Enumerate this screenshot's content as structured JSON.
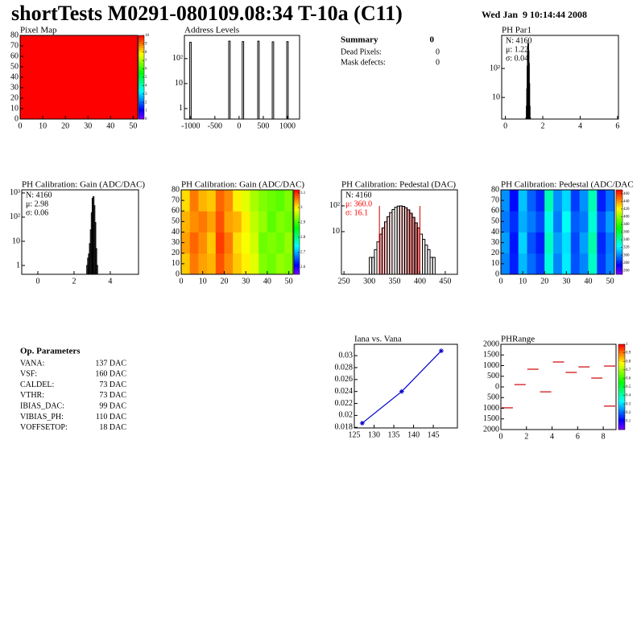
{
  "header": {
    "title": "shortTests M0291-080109.08:34 T-10a (C11)",
    "date": "Wed Jan  9 10:14:44 2008"
  },
  "summary": {
    "title": "Summary",
    "value": 0,
    "rows": [
      [
        "Dead Pixels:",
        0
      ],
      [
        "Mask defects:",
        0
      ]
    ]
  },
  "parameters": {
    "title": "Op. Parameters",
    "rows": [
      [
        "VANA:",
        "137 DAC"
      ],
      [
        "VSF:",
        "160 DAC"
      ],
      [
        "CALDEL:",
        "73 DAC"
      ],
      [
        "VTHR:",
        "73 DAC"
      ],
      [
        "IBIAS_DAC:",
        "99 DAC"
      ],
      [
        "VIBIAS_PH:",
        "110 DAC"
      ],
      [
        "VOFFSETOP:",
        "18 DAC"
      ]
    ]
  },
  "chart_data": [
    {
      "type": "heatmap",
      "title": "Pixel Map",
      "xlim": [
        0,
        52
      ],
      "ylim": [
        0,
        80
      ],
      "xticks": [
        0,
        10,
        20,
        30,
        40,
        50
      ],
      "yticks": [
        0,
        10,
        20,
        30,
        40,
        50,
        60,
        70,
        80
      ],
      "zlim": [
        0,
        10
      ],
      "zticks": [
        0,
        1,
        2,
        3,
        4,
        5,
        6,
        7,
        8,
        9,
        10
      ],
      "z": [
        [
          10
        ]
      ]
    },
    {
      "type": "histogram",
      "title": "Address Levels",
      "log_y": true,
      "color": "#000000",
      "xlim": [
        -1130,
        1250
      ],
      "ylim": [
        0.38,
        850
      ],
      "xticks": [
        -1000,
        -500,
        0,
        500,
        1000
      ],
      "yticks": [
        1,
        10,
        {
          "value": 100,
          "label": "10²"
        }
      ],
      "bins": [
        -1130,
        -1020,
        -990,
        -215,
        -185,
        65,
        95,
        385,
        415,
        685,
        715,
        985,
        1015,
        1250
      ],
      "counts": [
        0,
        450,
        0,
        500,
        0,
        480,
        0,
        500,
        0,
        470,
        0,
        480,
        0
      ]
    },
    {
      "type": "histogram",
      "title": "PH Par1",
      "log_y": true,
      "color": "#000000",
      "xlim": [
        -0.2,
        6.05
      ],
      "ylim": [
        1.8,
        1380
      ],
      "xticks": [
        0,
        2,
        4,
        6
      ],
      "yticks": [
        10,
        {
          "value": 100,
          "label": "10²"
        }
      ],
      "stats": [
        {
          "text": "N: 4160",
          "color": "#000000"
        },
        {
          "text": "μ: 1.22",
          "color": "#000000"
        },
        {
          "text": "σ: 0.04",
          "color": "#000000"
        }
      ],
      "bins": [
        1.1,
        1.12,
        1.14,
        1.16,
        1.18,
        1.2,
        1.22,
        1.24,
        1.26,
        1.28,
        1.3,
        1.32,
        1.34
      ],
      "counts": [
        2,
        5,
        20,
        120,
        400,
        750,
        700,
        400,
        150,
        30,
        5,
        2
      ]
    },
    {
      "type": "histogram",
      "title": "PH Calibration: Gain (ADC/DAC)",
      "log_y": true,
      "color": "#000000",
      "xlim": [
        -0.89,
        5.56
      ],
      "ylim": [
        0.43,
        1350
      ],
      "xticks": [
        0,
        2,
        4
      ],
      "yticks": [
        1,
        10,
        {
          "value": 100,
          "label": "10²"
        },
        {
          "value": 1000,
          "label": "10³"
        }
      ],
      "stats": [
        {
          "text": "N: 4160",
          "color": "#000000"
        },
        {
          "text": "μ: 2.98",
          "color": "#000000"
        },
        {
          "text": "σ: 0.06",
          "color": "#000000"
        }
      ],
      "bins": [
        2.7,
        2.75,
        2.8,
        2.85,
        2.9,
        2.95,
        3.0,
        3.05,
        3.1,
        3.15,
        3.2,
        3.25,
        3.3
      ],
      "counts": [
        1,
        2,
        3,
        8,
        30,
        150,
        600,
        700,
        300,
        60,
        5,
        1
      ]
    },
    {
      "type": "heatmap",
      "title": "PH Calibration: Gain (ADC/DAC)",
      "xlim": [
        0,
        52
      ],
      "ylim": [
        0,
        80
      ],
      "xticks": [
        0,
        10,
        20,
        30,
        40,
        50
      ],
      "yticks": [
        0,
        10,
        20,
        30,
        40,
        50,
        60,
        70,
        80
      ],
      "zlim": [
        2.55,
        3.12
      ],
      "zticks": [
        2.6,
        2.7,
        2.8,
        2.9,
        3,
        3.1
      ],
      "z": [
        [
          3.02,
          3.06,
          3.04,
          3.03,
          3.08,
          3.05,
          3.02,
          3.0,
          2.98,
          2.93,
          2.92,
          2.94,
          2.93
        ],
        [
          3.04,
          3.07,
          3.05,
          3.02,
          3.09,
          3.06,
          3.01,
          2.99,
          2.97,
          2.92,
          2.93,
          2.92,
          2.94
        ],
        [
          3.03,
          3.05,
          3.06,
          3.04,
          3.08,
          3.04,
          3.03,
          3.0,
          2.96,
          2.94,
          2.91,
          2.93,
          2.92
        ],
        [
          3.01,
          3.06,
          3.03,
          3.02,
          3.07,
          3.05,
          3.0,
          2.98,
          2.95,
          2.93,
          2.92,
          2.91,
          2.93
        ]
      ]
    },
    {
      "type": "histogram",
      "title": "PH Calibration: Pedestal (DAC)",
      "log_y": true,
      "color": "#000000",
      "hatch_color": "#cc0000",
      "cuts": [
        320,
        400
      ],
      "xlim": [
        245,
        474
      ],
      "ylim": [
        0.22,
        420
      ],
      "xticks": [
        250,
        300,
        350,
        400,
        450
      ],
      "yticks": [
        10,
        {
          "value": 100,
          "label": "10²"
        }
      ],
      "stats": [
        {
          "text": "N: 4160",
          "color": "#000000"
        },
        {
          "text": "μ: 360.0",
          "color": "#ff0000"
        },
        {
          "text": "σ: 16.1",
          "color": "#ff0000"
        }
      ],
      "bins": [
        300,
        305,
        310,
        315,
        320,
        325,
        330,
        335,
        340,
        345,
        350,
        355,
        360,
        365,
        370,
        375,
        380,
        385,
        390,
        395,
        400,
        405,
        410,
        415,
        420,
        425,
        430
      ],
      "counts": [
        1,
        1,
        2,
        4,
        8,
        14,
        24,
        38,
        55,
        72,
        88,
        98,
        100,
        96,
        85,
        70,
        52,
        36,
        22,
        14,
        8,
        5,
        3,
        2,
        1,
        1
      ]
    },
    {
      "type": "heatmap",
      "title": "PH Calibration: Pedestal (ADC/DAC",
      "xlim": [
        0,
        52
      ],
      "ylim": [
        0,
        80
      ],
      "xticks": [
        0,
        10,
        20,
        30,
        40,
        50
      ],
      "yticks": [
        0,
        10,
        20,
        30,
        40,
        50,
        60,
        70,
        80
      ],
      "zlim": [
        250,
        470
      ],
      "zticks": [
        260,
        280,
        300,
        320,
        340,
        360,
        380,
        400,
        420,
        440,
        460
      ],
      "z": [
        [
          300,
          280,
          310,
          295,
          285,
          330,
          300,
          320,
          290,
          300,
          335,
          285,
          300
        ],
        [
          305,
          278,
          315,
          290,
          280,
          335,
          305,
          318,
          288,
          305,
          340,
          282,
          298
        ],
        [
          298,
          283,
          308,
          298,
          288,
          328,
          298,
          325,
          292,
          298,
          332,
          288,
          305
        ],
        [
          302,
          276,
          312,
          293,
          282,
          338,
          302,
          316,
          286,
          302,
          338,
          280,
          296
        ]
      ]
    },
    {
      "type": "line",
      "title": "Iana vs. Vana",
      "color": "#0000cc",
      "xlim": [
        125,
        151.1
      ],
      "ylim": [
        0.0179,
        0.0319
      ],
      "xticks": [
        125,
        130,
        135,
        140,
        145
      ],
      "yticks": [
        0.018,
        0.02,
        0.022,
        0.024,
        0.026,
        0.028,
        0.03
      ],
      "x": [
        127,
        137,
        147
      ],
      "values": [
        0.0187,
        0.024,
        0.0308
      ]
    },
    {
      "type": "segments",
      "title": "PHRange",
      "color": "#cc0000",
      "xlim": [
        0,
        9
      ],
      "ylim": [
        -2000,
        2000
      ],
      "xticks": [
        0,
        2,
        4,
        6,
        8
      ],
      "yticks": [
        {
          "value": -2000,
          "label": "2000"
        },
        {
          "value": -1500,
          "label": "1500"
        },
        {
          "value": -1000,
          "label": "1000"
        },
        {
          "value": -500,
          "label": "500"
        },
        0,
        500,
        1000,
        1500,
        2000
      ],
      "zlim": [
        0,
        1
      ],
      "zticks": [
        0.1,
        0.2,
        0.3,
        0.4,
        0.5,
        0.6,
        0.7,
        0.8,
        0.9,
        1
      ],
      "x": [
        0,
        1,
        2,
        3,
        4,
        5,
        6,
        7,
        8,
        8
      ],
      "values": [
        -980,
        110,
        830,
        -230,
        1170,
        680,
        940,
        415,
        980,
        -900
      ]
    }
  ]
}
